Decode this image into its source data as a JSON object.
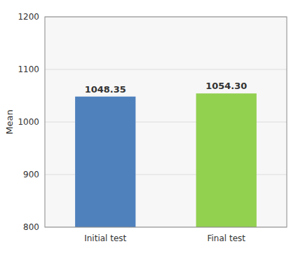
{
  "chart_data": {
    "type": "bar",
    "categories": [
      "Initial test",
      "Final test"
    ],
    "values": [
      1048.35,
      1054.3
    ],
    "value_labels": [
      "1048.35",
      "1054.30"
    ],
    "colors": [
      "#4f81bd",
      "#92d050"
    ],
    "ylabel": "Mean",
    "ylim": [
      800,
      1200
    ],
    "yticks": [
      800,
      900,
      1000,
      1100,
      1200
    ],
    "grid": true,
    "data_labels": true
  }
}
